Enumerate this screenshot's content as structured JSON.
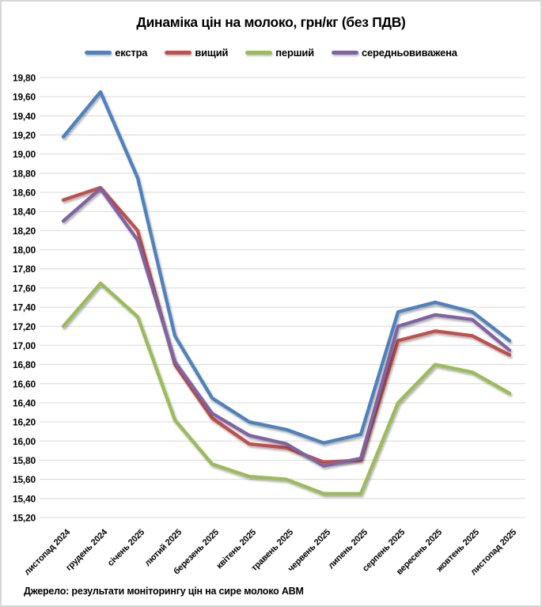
{
  "source_note": "Джерело: результати моніторингу цін на сире молоко АВМ",
  "chart_data": {
    "type": "line",
    "title": "Динаміка цін на молоко, грн/кг (без ПДВ)",
    "categories": [
      "листопад 2024",
      "грудень 2024",
      "січень 2025",
      "лютий 2025",
      "березень 2025",
      "квітень 2025",
      "травень 2025",
      "червень 2025",
      "липень 2025",
      "серпень 2025",
      "вересень 2025",
      "жовтень 2025",
      "листопад 2025"
    ],
    "series": [
      {
        "name": "екстра",
        "color": "#4F81BD",
        "values": [
          19.18,
          19.65,
          18.75,
          17.1,
          16.45,
          16.2,
          16.12,
          15.98,
          16.07,
          17.35,
          17.45,
          17.35,
          17.05
        ]
      },
      {
        "name": "вищий",
        "color": "#C0504D",
        "values": [
          18.52,
          18.65,
          18.2,
          16.8,
          16.24,
          15.97,
          15.93,
          15.78,
          15.8,
          17.05,
          17.15,
          17.1,
          16.9
        ]
      },
      {
        "name": "перший",
        "color": "#9BBB59",
        "values": [
          17.2,
          17.65,
          17.3,
          16.22,
          15.76,
          15.63,
          15.6,
          15.45,
          15.45,
          16.4,
          16.8,
          16.72,
          16.5
        ]
      },
      {
        "name": "середньовиважена",
        "color": "#8064A2",
        "values": [
          18.3,
          18.64,
          18.1,
          16.83,
          16.29,
          16.06,
          15.97,
          15.74,
          15.82,
          17.2,
          17.32,
          17.27,
          16.95
        ]
      }
    ],
    "xlabel": "",
    "ylabel": "",
    "ylim": [
      15.2,
      19.8
    ],
    "ytick_step": 0.2,
    "decimal_separator": ",",
    "grid": "horizontal-only",
    "gridline_color": "#d9d9d9",
    "legend_position": "top"
  }
}
